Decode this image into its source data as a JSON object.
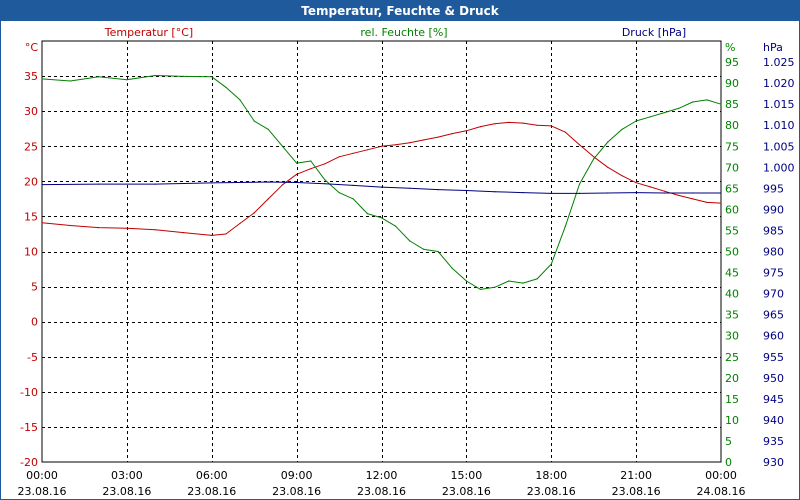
{
  "window": {
    "title": "Temperatur, Feuchte & Druck"
  },
  "chart_data": {
    "type": "line",
    "grid": true,
    "x": {
      "range": [
        "00:00 23.08.16",
        "00:00 24.08.16"
      ],
      "ticks": [
        {
          "time": "00:00",
          "date": "23.08.16"
        },
        {
          "time": "03:00",
          "date": "23.08.16"
        },
        {
          "time": "06:00",
          "date": "23.08.16"
        },
        {
          "time": "09:00",
          "date": "23.08.16"
        },
        {
          "time": "12:00",
          "date": "23.08.16"
        },
        {
          "time": "15:00",
          "date": "23.08.16"
        },
        {
          "time": "18:00",
          "date": "23.08.16"
        },
        {
          "time": "21:00",
          "date": "23.08.16"
        },
        {
          "time": "00:00",
          "date": "24.08.16"
        }
      ]
    },
    "axes": {
      "temperature": {
        "label": "Temperatur [°C]",
        "unit": "°C",
        "color": "#c00000",
        "range": [
          -20,
          40
        ],
        "ticks": [
          "35",
          "30",
          "25",
          "20",
          "15",
          "10",
          "5",
          "0",
          "-5",
          "-10",
          "-15",
          "-20"
        ]
      },
      "humidity": {
        "label": "rel. Feuchte [%]",
        "unit": "%",
        "color": "#008000",
        "range": [
          0,
          100
        ],
        "ticks": [
          "95",
          "90",
          "85",
          "80",
          "75",
          "70",
          "65",
          "60",
          "55",
          "50",
          "45",
          "40",
          "35",
          "30",
          "25",
          "20",
          "15",
          "10",
          "5",
          "0"
        ]
      },
      "pressure": {
        "label": "Druck [hPa]",
        "unit": "hPa",
        "color": "#000080",
        "range": [
          930,
          1030
        ],
        "ticks": [
          "1.025",
          "1.020",
          "1.015",
          "1.010",
          "1.005",
          "1.000",
          "995",
          "990",
          "985",
          "980",
          "975",
          "970",
          "965",
          "960",
          "955",
          "950",
          "945",
          "940",
          "935",
          "930"
        ]
      }
    },
    "series": [
      {
        "name": "Temperatur [°C]",
        "axis": "temperature",
        "color": "#c00000",
        "hours": [
          0,
          1,
          2,
          3,
          4,
          5,
          6,
          6.5,
          7,
          7.5,
          8,
          8.5,
          9,
          9.5,
          10,
          10.5,
          11,
          11.5,
          12,
          12.5,
          13,
          13.5,
          14,
          14.5,
          15,
          15.5,
          16,
          16.5,
          17,
          17.5,
          18,
          18.5,
          19,
          19.5,
          20,
          20.5,
          21,
          21.5,
          22,
          22.5,
          23,
          23.5,
          24
        ],
        "values": [
          14.1,
          13.7,
          13.4,
          13.3,
          13.1,
          12.7,
          12.3,
          12.5,
          14.0,
          15.5,
          17.5,
          19.5,
          21.0,
          21.8,
          22.5,
          23.5,
          24.0,
          24.5,
          25.0,
          25.2,
          25.5,
          25.9,
          26.3,
          26.8,
          27.2,
          27.8,
          28.2,
          28.4,
          28.3,
          28.0,
          27.9,
          27.0,
          25.2,
          23.5,
          22.0,
          20.8,
          19.8,
          19.2,
          18.6,
          18.0,
          17.5,
          17.0,
          16.9
        ]
      },
      {
        "name": "rel. Feuchte [%]",
        "axis": "humidity",
        "color": "#008000",
        "hours": [
          0,
          1,
          2,
          3,
          4,
          5,
          6,
          6.5,
          7,
          7.5,
          8,
          8.5,
          9,
          9.5,
          10,
          10.5,
          11,
          11.5,
          12,
          12.5,
          13,
          13.5,
          14,
          14.5,
          15,
          15.5,
          16,
          16.5,
          17,
          17.5,
          18,
          18.5,
          19,
          19.5,
          20,
          20.5,
          21,
          21.5,
          22,
          22.5,
          23,
          23.5,
          24
        ],
        "values": [
          91.0,
          90.5,
          91.5,
          90.8,
          91.8,
          91.6,
          91.5,
          89.0,
          86.0,
          81.0,
          79.0,
          75.0,
          71.0,
          71.5,
          67.0,
          64.0,
          62.5,
          59.0,
          58.0,
          56.0,
          52.5,
          50.5,
          50.0,
          46.0,
          43.0,
          41.0,
          41.5,
          43.0,
          42.5,
          43.5,
          47.0,
          56.0,
          66.0,
          72.0,
          76.0,
          79.0,
          81.0,
          82.0,
          83.0,
          84.0,
          85.5,
          86.0,
          85.0
        ]
      },
      {
        "name": "Druck [hPa]",
        "axis": "pressure",
        "color": "#000080",
        "hours": [
          0,
          2,
          4,
          6,
          8,
          9,
          10,
          11,
          12,
          13,
          14,
          15,
          16,
          17,
          18,
          19,
          20,
          21,
          22,
          23,
          24
        ],
        "values": [
          995.9,
          996.0,
          996.0,
          996.3,
          996.5,
          996.4,
          996.1,
          995.7,
          995.3,
          995.0,
          994.7,
          994.5,
          994.2,
          994.0,
          993.8,
          993.8,
          993.9,
          994.0,
          993.9,
          993.9,
          993.9
        ]
      }
    ]
  }
}
